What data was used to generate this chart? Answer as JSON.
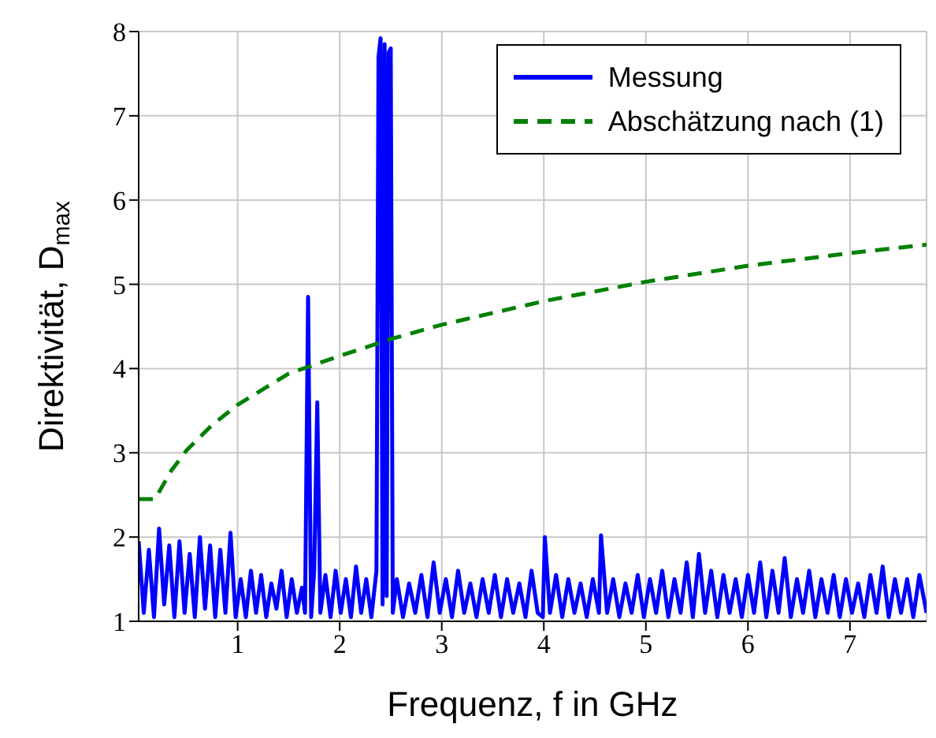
{
  "chart_data": {
    "type": "line",
    "xlabel": "Frequenz, f in GHz",
    "ylabel": "Direktivität, D$_{max}$",
    "xlim": [
      0.03,
      7.75
    ],
    "ylim": [
      1,
      8
    ],
    "xticks": [
      1,
      2,
      3,
      4,
      5,
      6,
      7
    ],
    "yticks": [
      1,
      2,
      3,
      4,
      5,
      6,
      7,
      8
    ],
    "grid": true,
    "legend": "top right",
    "marker": "none",
    "series": [
      {
        "name": "Messung",
        "color": "#0000ff",
        "line_style": "solid",
        "x": [
          0.03,
          0.08,
          0.13,
          0.18,
          0.23,
          0.28,
          0.33,
          0.38,
          0.43,
          0.48,
          0.53,
          0.58,
          0.63,
          0.68,
          0.73,
          0.78,
          0.83,
          0.88,
          0.93,
          0.98,
          1.03,
          1.08,
          1.13,
          1.18,
          1.23,
          1.28,
          1.33,
          1.38,
          1.43,
          1.48,
          1.53,
          1.58,
          1.63,
          1.66,
          1.69,
          1.72,
          1.75,
          1.78,
          1.81,
          1.86,
          1.91,
          1.96,
          2.01,
          2.06,
          2.11,
          2.16,
          2.21,
          2.26,
          2.31,
          2.36,
          2.38,
          2.4,
          2.42,
          2.44,
          2.46,
          2.48,
          2.5,
          2.52,
          2.56,
          2.62,
          2.68,
          2.74,
          2.8,
          2.86,
          2.92,
          2.98,
          3.04,
          3.1,
          3.16,
          3.22,
          3.28,
          3.34,
          3.4,
          3.46,
          3.52,
          3.58,
          3.64,
          3.7,
          3.76,
          3.82,
          3.88,
          3.94,
          3.99,
          4.01,
          4.06,
          4.12,
          4.18,
          4.24,
          4.3,
          4.36,
          4.42,
          4.48,
          4.54,
          4.56,
          4.62,
          4.68,
          4.74,
          4.8,
          4.86,
          4.92,
          4.98,
          5.04,
          5.1,
          5.16,
          5.22,
          5.28,
          5.34,
          5.4,
          5.46,
          5.52,
          5.58,
          5.64,
          5.7,
          5.76,
          5.82,
          5.88,
          5.94,
          6.0,
          6.06,
          6.12,
          6.18,
          6.24,
          6.3,
          6.36,
          6.42,
          6.48,
          6.54,
          6.6,
          6.66,
          6.72,
          6.78,
          6.84,
          6.9,
          6.96,
          7.02,
          7.08,
          7.14,
          7.2,
          7.26,
          7.32,
          7.38,
          7.44,
          7.5,
          7.56,
          7.62,
          7.68,
          7.75
        ],
        "values": [
          1.95,
          1.1,
          1.85,
          1.05,
          2.1,
          1.2,
          1.9,
          1.05,
          1.95,
          1.1,
          1.8,
          1.05,
          2.0,
          1.15,
          1.9,
          1.05,
          1.85,
          1.1,
          2.05,
          1.05,
          1.5,
          1.05,
          1.6,
          1.1,
          1.55,
          1.05,
          1.45,
          1.15,
          1.6,
          1.05,
          1.5,
          1.1,
          1.4,
          1.1,
          4.85,
          1.05,
          1.6,
          3.6,
          1.1,
          1.55,
          1.05,
          1.6,
          1.1,
          1.5,
          1.05,
          1.65,
          1.1,
          1.5,
          1.05,
          1.6,
          7.7,
          7.92,
          1.2,
          7.85,
          1.3,
          7.75,
          7.8,
          1.1,
          1.5,
          1.05,
          1.45,
          1.1,
          1.55,
          1.05,
          1.7,
          1.1,
          1.5,
          1.05,
          1.6,
          1.1,
          1.45,
          1.05,
          1.5,
          1.1,
          1.55,
          1.05,
          1.5,
          1.1,
          1.45,
          1.05,
          1.6,
          1.1,
          1.05,
          2.0,
          1.1,
          1.55,
          1.05,
          1.5,
          1.1,
          1.45,
          1.05,
          1.5,
          1.1,
          2.02,
          1.1,
          1.5,
          1.05,
          1.45,
          1.1,
          1.55,
          1.05,
          1.5,
          1.1,
          1.6,
          1.05,
          1.5,
          1.1,
          1.7,
          1.05,
          1.8,
          1.1,
          1.6,
          1.05,
          1.55,
          1.1,
          1.5,
          1.05,
          1.55,
          1.1,
          1.7,
          1.05,
          1.6,
          1.1,
          1.75,
          1.05,
          1.5,
          1.1,
          1.6,
          1.05,
          1.5,
          1.1,
          1.55,
          1.05,
          1.5,
          1.1,
          1.45,
          1.05,
          1.55,
          1.1,
          1.65,
          1.05,
          1.5,
          1.1,
          1.5,
          1.05,
          1.55,
          1.1
        ]
      },
      {
        "name": "Abschätzung nach (1)",
        "color": "#008000",
        "line_style": "dashed",
        "x": [
          0.03,
          0.19,
          0.35,
          0.5,
          0.75,
          1,
          1.5,
          2,
          2.5,
          3,
          4,
          5,
          6,
          7,
          7.75
        ],
        "values": [
          2.45,
          2.45,
          2.79,
          3.03,
          3.33,
          3.57,
          3.94,
          4.15,
          4.35,
          4.52,
          4.8,
          5.03,
          5.22,
          5.37,
          5.47
        ]
      }
    ]
  }
}
